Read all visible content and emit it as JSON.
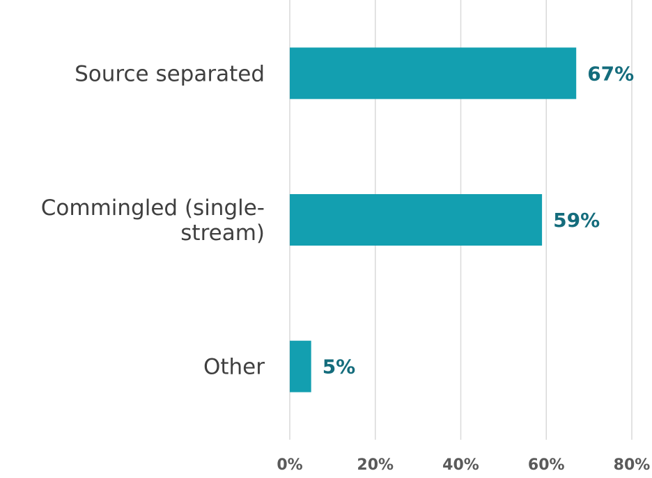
{
  "chart_data": {
    "type": "bar",
    "orientation": "horizontal",
    "categories": [
      [
        "Source separated"
      ],
      [
        "Commingled (single-",
        "stream)"
      ],
      [
        "Other"
      ]
    ],
    "values": [
      67,
      59,
      5
    ],
    "data_labels": [
      "67%",
      "59%",
      "5%"
    ],
    "x_ticks": [
      0,
      20,
      40,
      60,
      80
    ],
    "x_tick_labels": [
      "0%",
      "20%",
      "40%",
      "60%",
      "80%"
    ],
    "xlim": [
      0,
      80
    ],
    "grid": "vertical",
    "legend": "none",
    "colors": {
      "bar": "#139fb0",
      "data_label": "#146c7c",
      "category_label": "#3f3f3f",
      "tick_label": "#5a5a5a",
      "grid": "#d9d9d9"
    }
  }
}
